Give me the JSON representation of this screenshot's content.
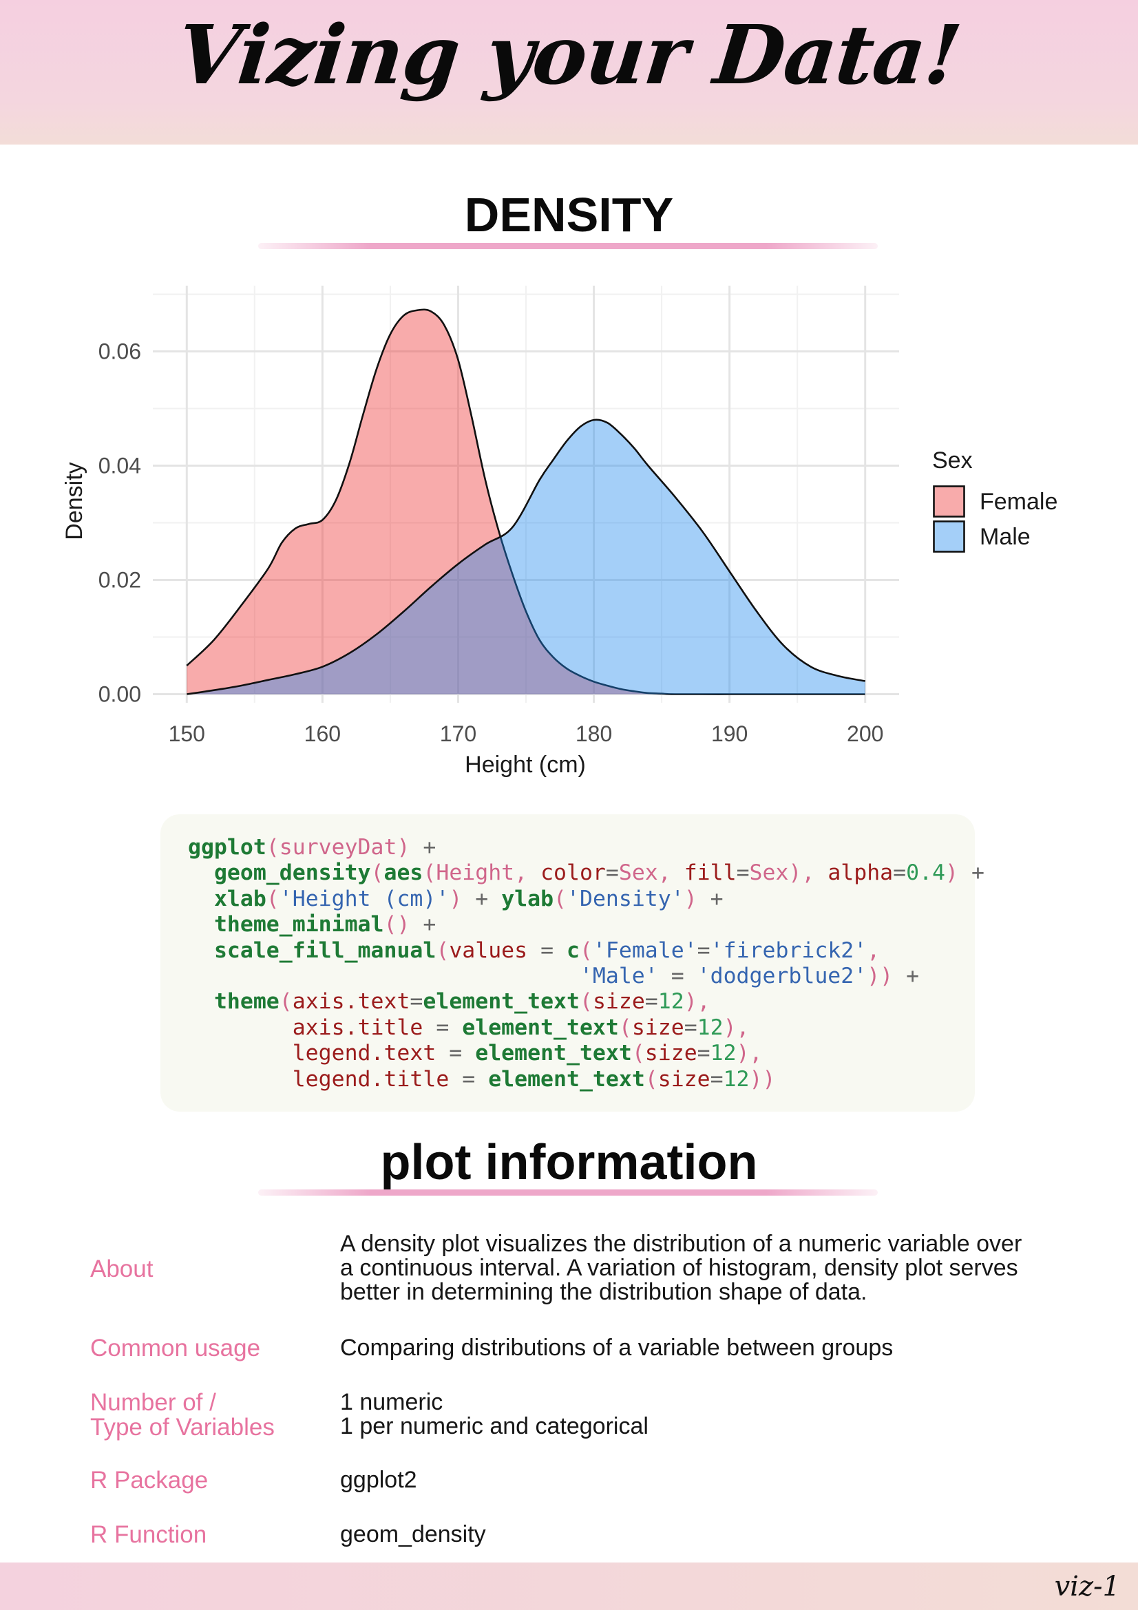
{
  "header": {
    "title": "Vizing your Data!"
  },
  "section1": {
    "title": "DENSITY"
  },
  "chart_data": {
    "type": "area",
    "xlabel": "Height (cm)",
    "ylabel": "Density",
    "xlim": [
      147.5,
      202.5
    ],
    "ylim": [
      -0.0015,
      0.0715
    ],
    "x_ticks": [
      150,
      160,
      170,
      180,
      190,
      200
    ],
    "y_ticks": [
      0.0,
      0.02,
      0.04,
      0.06
    ],
    "x_tick_labels": [
      "150",
      "160",
      "170",
      "180",
      "190",
      "200"
    ],
    "y_tick_labels": [
      "0.00",
      "0.02",
      "0.04",
      "0.06"
    ],
    "grid": true,
    "legend": {
      "title": "Sex",
      "position": "right"
    },
    "series": [
      {
        "name": "Female",
        "color": "#ee2c2c",
        "fill_opacity": 0.4,
        "x": [
          150,
          152,
          154,
          156,
          157,
          158,
          159,
          160,
          161,
          162,
          163,
          164,
          165,
          166,
          167,
          168,
          169,
          170,
          171,
          172,
          173,
          174,
          175,
          176,
          177,
          178,
          179,
          180,
          181,
          182,
          183,
          184,
          185,
          186,
          190,
          195,
          200
        ],
        "y": [
          0.005,
          0.0095,
          0.0155,
          0.022,
          0.0265,
          0.029,
          0.0298,
          0.0305,
          0.034,
          0.0405,
          0.049,
          0.057,
          0.063,
          0.0663,
          0.0672,
          0.067,
          0.0645,
          0.0585,
          0.0485,
          0.0375,
          0.0285,
          0.021,
          0.0145,
          0.0095,
          0.0065,
          0.0045,
          0.0032,
          0.0022,
          0.0015,
          0.0009,
          0.0005,
          0.0002,
          0.0001,
          0.0,
          0.0,
          0.0,
          0.0
        ]
      },
      {
        "name": "Male",
        "color": "#1c86ee",
        "fill_opacity": 0.4,
        "x": [
          150,
          152,
          154,
          156,
          158,
          160,
          162,
          164,
          166,
          168,
          170,
          172,
          174,
          176,
          177,
          178,
          179,
          180,
          181,
          182,
          183,
          184,
          186,
          188,
          190,
          192,
          194,
          196,
          198,
          200
        ],
        "y": [
          0.0,
          0.0007,
          0.0015,
          0.0025,
          0.0035,
          0.0048,
          0.0072,
          0.0105,
          0.0145,
          0.0188,
          0.0228,
          0.0262,
          0.0292,
          0.0375,
          0.041,
          0.0443,
          0.0468,
          0.048,
          0.0475,
          0.0455,
          0.043,
          0.04,
          0.0345,
          0.0285,
          0.0215,
          0.0145,
          0.0085,
          0.0048,
          0.0032,
          0.0023
        ]
      }
    ]
  },
  "code": {
    "lines": [
      [
        [
          "fn",
          "ggplot"
        ],
        [
          "var",
          "(surveyDat)"
        ],
        [
          "op",
          " +"
        ]
      ],
      [
        [
          "op",
          "  "
        ],
        [
          "fn",
          "geom_density"
        ],
        [
          "var",
          "("
        ],
        [
          "fn",
          "aes"
        ],
        [
          "var",
          "(Height, "
        ],
        [
          "arg",
          "color"
        ],
        [
          "op",
          "="
        ],
        [
          "var",
          "Sex, "
        ],
        [
          "arg",
          "fill"
        ],
        [
          "op",
          "="
        ],
        [
          "var",
          "Sex), "
        ],
        [
          "arg",
          "alpha"
        ],
        [
          "op",
          "="
        ],
        [
          "num",
          "0.4"
        ],
        [
          "var",
          ")"
        ],
        [
          "op",
          " +"
        ]
      ],
      [
        [
          "op",
          "  "
        ],
        [
          "fn",
          "xlab"
        ],
        [
          "var",
          "("
        ],
        [
          "str",
          "'Height (cm)'"
        ],
        [
          "var",
          ")"
        ],
        [
          "op",
          " + "
        ],
        [
          "fn",
          "ylab"
        ],
        [
          "var",
          "("
        ],
        [
          "str",
          "'Density'"
        ],
        [
          "var",
          ")"
        ],
        [
          "op",
          " +"
        ]
      ],
      [
        [
          "op",
          "  "
        ],
        [
          "fn",
          "theme_minimal"
        ],
        [
          "var",
          "()"
        ],
        [
          "op",
          " +"
        ]
      ],
      [
        [
          "op",
          "  "
        ],
        [
          "fn",
          "scale_fill_manual"
        ],
        [
          "var",
          "("
        ],
        [
          "arg",
          "values"
        ],
        [
          "op",
          " = "
        ],
        [
          "fn",
          "c"
        ],
        [
          "var",
          "("
        ],
        [
          "str",
          "'Female'"
        ],
        [
          "op",
          "="
        ],
        [
          "str",
          "'firebrick2'"
        ],
        [
          "var",
          ","
        ]
      ],
      [
        [
          "op",
          "                              "
        ],
        [
          "str",
          "'Male'"
        ],
        [
          "op",
          " = "
        ],
        [
          "str",
          "'dodgerblue2'"
        ],
        [
          "var",
          "))"
        ],
        [
          "op",
          " +"
        ]
      ],
      [
        [
          "op",
          "  "
        ],
        [
          "fn",
          "theme"
        ],
        [
          "var",
          "("
        ],
        [
          "arg",
          "axis.text"
        ],
        [
          "op",
          "="
        ],
        [
          "fn",
          "element_text"
        ],
        [
          "var",
          "("
        ],
        [
          "arg",
          "size"
        ],
        [
          "op",
          "="
        ],
        [
          "num",
          "12"
        ],
        [
          "var",
          "),"
        ]
      ],
      [
        [
          "op",
          "        "
        ],
        [
          "arg",
          "axis.title"
        ],
        [
          "op",
          " = "
        ],
        [
          "fn",
          "element_text"
        ],
        [
          "var",
          "("
        ],
        [
          "arg",
          "size"
        ],
        [
          "op",
          "="
        ],
        [
          "num",
          "12"
        ],
        [
          "var",
          "),"
        ]
      ],
      [
        [
          "op",
          "        "
        ],
        [
          "arg",
          "legend.text"
        ],
        [
          "op",
          " = "
        ],
        [
          "fn",
          "element_text"
        ],
        [
          "var",
          "("
        ],
        [
          "arg",
          "size"
        ],
        [
          "op",
          "="
        ],
        [
          "num",
          "12"
        ],
        [
          "var",
          "),"
        ]
      ],
      [
        [
          "op",
          "        "
        ],
        [
          "arg",
          "legend.title"
        ],
        [
          "op",
          " = "
        ],
        [
          "fn",
          "element_text"
        ],
        [
          "var",
          "("
        ],
        [
          "arg",
          "size"
        ],
        [
          "op",
          "="
        ],
        [
          "num",
          "12"
        ],
        [
          "var",
          "))"
        ]
      ]
    ]
  },
  "section2": {
    "title": "plot information"
  },
  "info": {
    "about_label": "About",
    "about_value": "A density plot visualizes the distribution of a numeric variable over\na continuous interval. A variation of histogram, density plot serves\nbetter in determining the distribution shape of data.",
    "usage_label": "Common usage",
    "usage_value": "Comparing distributions of a variable between groups",
    "vars_label": "Number of /\nType of Variables",
    "vars_value": "1 numeric\n1 per numeric and categorical",
    "package_label": "R Package",
    "package_value": "ggplot2",
    "function_label": "R Function",
    "function_value": "geom_density"
  },
  "footer": {
    "tag": "viz-1"
  }
}
